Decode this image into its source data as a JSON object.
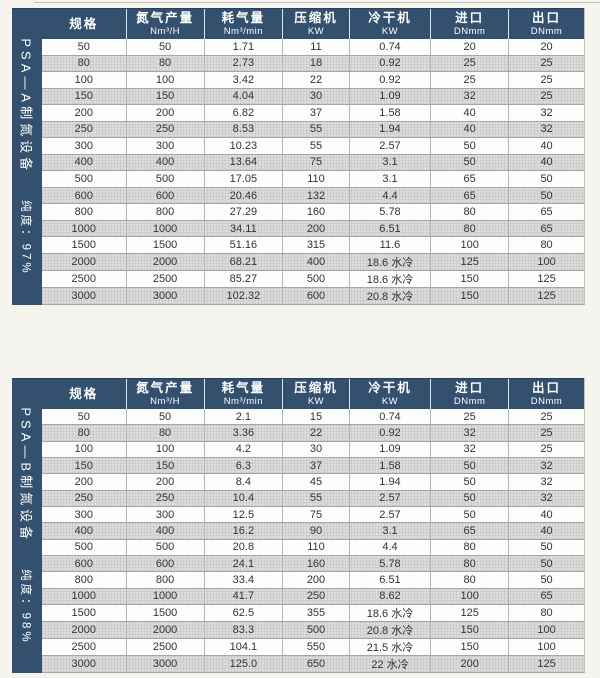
{
  "colors": {
    "header_bg": "#33506f",
    "sidebar_bg": "#33506f",
    "alt_row_bg": "#dfddda",
    "page_bg": "#f6f4ef",
    "header_text": "#ffffff"
  },
  "columns": [
    {
      "label": "规格",
      "unit": ""
    },
    {
      "label": "氮气产量",
      "unit": "Nm³/H"
    },
    {
      "label": "耗气量",
      "unit": "Nm³/min"
    },
    {
      "label": "压缩机",
      "unit": "KW"
    },
    {
      "label": "冷干机",
      "unit": "KW"
    },
    {
      "label": "进口",
      "unit": "DNmm"
    },
    {
      "label": "出口",
      "unit": "DNmm"
    }
  ],
  "tables": [
    {
      "side_label": "PSA—A制氮设备",
      "purity_label": "纯度：97%",
      "rows": [
        [
          "50",
          "50",
          "1.71",
          "11",
          "0.74",
          "20",
          "20"
        ],
        [
          "80",
          "80",
          "2.73",
          "18",
          "0.92",
          "25",
          "25"
        ],
        [
          "100",
          "100",
          "3.42",
          "22",
          "0.92",
          "25",
          "25"
        ],
        [
          "150",
          "150",
          "4.04",
          "30",
          "1.09",
          "32",
          "25"
        ],
        [
          "200",
          "200",
          "6.82",
          "37",
          "1.58",
          "40",
          "32"
        ],
        [
          "250",
          "250",
          "8.53",
          "55",
          "1.94",
          "40",
          "32"
        ],
        [
          "300",
          "300",
          "10.23",
          "55",
          "2.57",
          "50",
          "40"
        ],
        [
          "400",
          "400",
          "13.64",
          "75",
          "3.1",
          "50",
          "40"
        ],
        [
          "500",
          "500",
          "17.05",
          "110",
          "3.1",
          "65",
          "50"
        ],
        [
          "600",
          "600",
          "20.46",
          "132",
          "4.4",
          "65",
          "50"
        ],
        [
          "800",
          "800",
          "27.29",
          "160",
          "5.78",
          "80",
          "65"
        ],
        [
          "1000",
          "1000",
          "34.11",
          "200",
          "6.51",
          "80",
          "65"
        ],
        [
          "1500",
          "1500",
          "51.16",
          "315",
          "11.6",
          "100",
          "80"
        ],
        [
          "2000",
          "2000",
          "68.21",
          "400",
          "18.6 水冷",
          "125",
          "100"
        ],
        [
          "2500",
          "2500",
          "85.27",
          "500",
          "18.6 水冷",
          "150",
          "125"
        ],
        [
          "3000",
          "3000",
          "102.32",
          "600",
          "20.8 水冷",
          "150",
          "125"
        ]
      ]
    },
    {
      "side_label": "PSA—B制氮设备",
      "purity_label": "纯度：98%",
      "rows": [
        [
          "50",
          "50",
          "2.1",
          "15",
          "0.74",
          "25",
          "25"
        ],
        [
          "80",
          "80",
          "3.36",
          "22",
          "0.92",
          "32",
          "25"
        ],
        [
          "100",
          "100",
          "4.2",
          "30",
          "1.09",
          "32",
          "25"
        ],
        [
          "150",
          "150",
          "6.3",
          "37",
          "1.58",
          "50",
          "32"
        ],
        [
          "200",
          "200",
          "8.4",
          "45",
          "1.94",
          "50",
          "32"
        ],
        [
          "250",
          "250",
          "10.4",
          "55",
          "2.57",
          "50",
          "32"
        ],
        [
          "300",
          "300",
          "12.5",
          "75",
          "2.57",
          "50",
          "40"
        ],
        [
          "400",
          "400",
          "16.2",
          "90",
          "3.1",
          "65",
          "40"
        ],
        [
          "500",
          "500",
          "20.8",
          "110",
          "4.4",
          "80",
          "50"
        ],
        [
          "600",
          "600",
          "24.1",
          "160",
          "5.78",
          "80",
          "50"
        ],
        [
          "800",
          "800",
          "33.4",
          "200",
          "6.51",
          "80",
          "50"
        ],
        [
          "1000",
          "1000",
          "41.7",
          "250",
          "8.62",
          "100",
          "65"
        ],
        [
          "1500",
          "1500",
          "62.5",
          "355",
          "18.6 水冷",
          "125",
          "80"
        ],
        [
          "2000",
          "2000",
          "83.3",
          "500",
          "20.8 水冷",
          "150",
          "100"
        ],
        [
          "2500",
          "2500",
          "104.1",
          "550",
          "21.5 水冷",
          "150",
          "100"
        ],
        [
          "3000",
          "3000",
          "125.0",
          "650",
          "22 水冷",
          "200",
          "125"
        ]
      ]
    }
  ]
}
